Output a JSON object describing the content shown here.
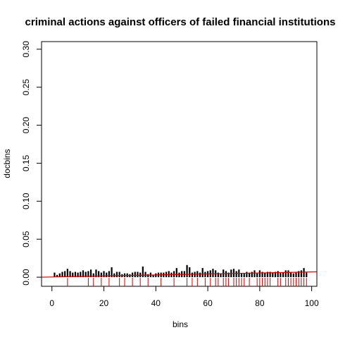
{
  "chart_data": {
    "type": "bar",
    "title": "criminal actions against officers of failed financial institutions",
    "xlabel": "bins",
    "ylabel": "docbins",
    "xlim": [
      -4,
      102
    ],
    "ylim": [
      -0.012,
      0.31
    ],
    "x_ticks": [
      0,
      20,
      40,
      60,
      80,
      100
    ],
    "y_ticks": [
      0.0,
      0.05,
      0.1,
      0.15,
      0.2,
      0.25,
      0.3
    ],
    "x_tick_labels": [
      "0",
      "20",
      "40",
      "60",
      "80",
      "100"
    ],
    "y_tick_labels": [
      "0.00",
      "0.05",
      "0.10",
      "0.15",
      "0.20",
      "0.25",
      "0.30"
    ],
    "grid": false,
    "colors": {
      "bars": "#000000",
      "rug": "#cc0000",
      "trend": "#cc0000"
    },
    "series": [
      {
        "type": "bar",
        "x": [
          1,
          2,
          3,
          4,
          5,
          6,
          7,
          8,
          9,
          10,
          11,
          12,
          13,
          14,
          15,
          16,
          17,
          18,
          19,
          20,
          21,
          22,
          23,
          24,
          25,
          26,
          27,
          28,
          29,
          30,
          31,
          32,
          33,
          34,
          35,
          36,
          37,
          38,
          39,
          40,
          41,
          42,
          43,
          44,
          45,
          46,
          47,
          48,
          49,
          50,
          51,
          52,
          53,
          54,
          55,
          56,
          57,
          58,
          59,
          60,
          61,
          62,
          63,
          64,
          65,
          66,
          67,
          68,
          69,
          70,
          71,
          72,
          73,
          74,
          75,
          76,
          77,
          78,
          79,
          80,
          81,
          82,
          83,
          84,
          85,
          86,
          87,
          88,
          89,
          90,
          91,
          92,
          93,
          94,
          95,
          96,
          97,
          98
        ],
        "values": [
          0.006,
          0.003,
          0.005,
          0.007,
          0.008,
          0.011,
          0.008,
          0.006,
          0.007,
          0.006,
          0.007,
          0.009,
          0.007,
          0.008,
          0.01,
          0.005,
          0.01,
          0.008,
          0.006,
          0.008,
          0.006,
          0.008,
          0.013,
          0.005,
          0.007,
          0.007,
          0.004,
          0.005,
          0.005,
          0.004,
          0.006,
          0.007,
          0.007,
          0.006,
          0.014,
          0.007,
          0.004,
          0.006,
          0.003,
          0.005,
          0.006,
          0.006,
          0.006,
          0.007,
          0.008,
          0.006,
          0.008,
          0.012,
          0.006,
          0.008,
          0.008,
          0.016,
          0.013,
          0.006,
          0.007,
          0.008,
          0.006,
          0.012,
          0.007,
          0.008,
          0.009,
          0.011,
          0.009,
          0.006,
          0.005,
          0.01,
          0.008,
          0.006,
          0.01,
          0.011,
          0.008,
          0.01,
          0.005,
          0.005,
          0.007,
          0.006,
          0.007,
          0.009,
          0.005,
          0.009,
          0.007,
          0.006,
          0.007,
          0.007,
          0.006,
          0.007,
          0.008,
          0.006,
          0.006,
          0.009,
          0.009,
          0.006,
          0.005,
          0.006,
          0.008,
          0.009,
          0.012,
          0.006
        ]
      },
      {
        "type": "rug",
        "x": [
          6,
          14,
          16,
          19,
          22,
          26,
          28,
          31,
          34,
          37,
          42,
          47,
          52,
          54,
          56,
          59,
          61,
          63,
          64,
          66,
          67,
          68,
          70,
          71,
          72,
          73,
          74,
          76,
          79,
          80,
          81,
          82,
          83,
          84,
          87,
          88,
          90,
          91,
          92,
          93,
          94,
          95,
          96,
          97,
          98
        ]
      },
      {
        "type": "line",
        "x": [
          -4,
          102
        ],
        "values": [
          0.0,
          0.007
        ]
      }
    ]
  }
}
